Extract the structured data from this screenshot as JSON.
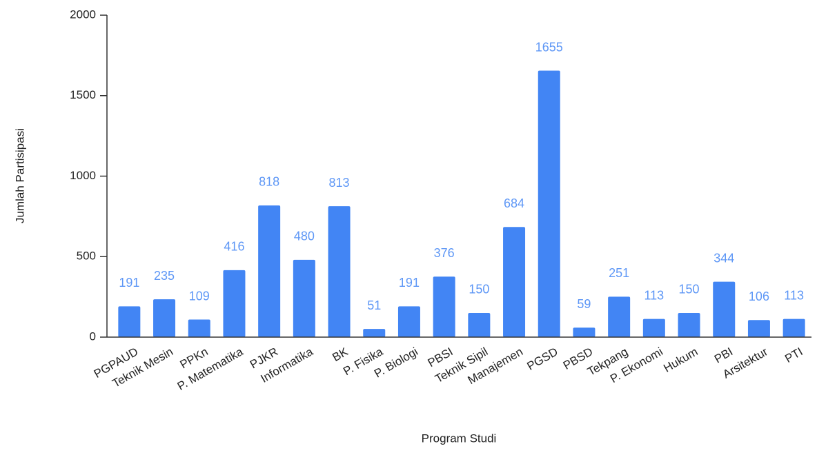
{
  "chart_data": {
    "type": "bar",
    "categories": [
      "PGPAUD",
      "Teknik Mesin",
      "PPKn",
      "P. Matematika",
      "PJKR",
      "Informatika",
      "BK",
      "P. Fisika",
      "P. Biologi",
      "PBSI",
      "Teknik Sipil",
      "Manajemen",
      "PGSD",
      "PBSD",
      "Tekpang",
      "P. Ekonomi",
      "Hukum",
      "PBI",
      "Arsitektur",
      "PTI"
    ],
    "values": [
      191,
      235,
      109,
      416,
      818,
      480,
      813,
      51,
      191,
      376,
      150,
      684,
      1655,
      59,
      251,
      113,
      150,
      344,
      106,
      113
    ],
    "color": "#4285f4",
    "ylim": [
      0,
      2000
    ],
    "yticks": [
      0,
      500,
      1000,
      1500,
      2000
    ],
    "x_label": "Program Studi",
    "y_label": "Jumlah Partisipasi",
    "data_labels": true,
    "grid": false
  }
}
